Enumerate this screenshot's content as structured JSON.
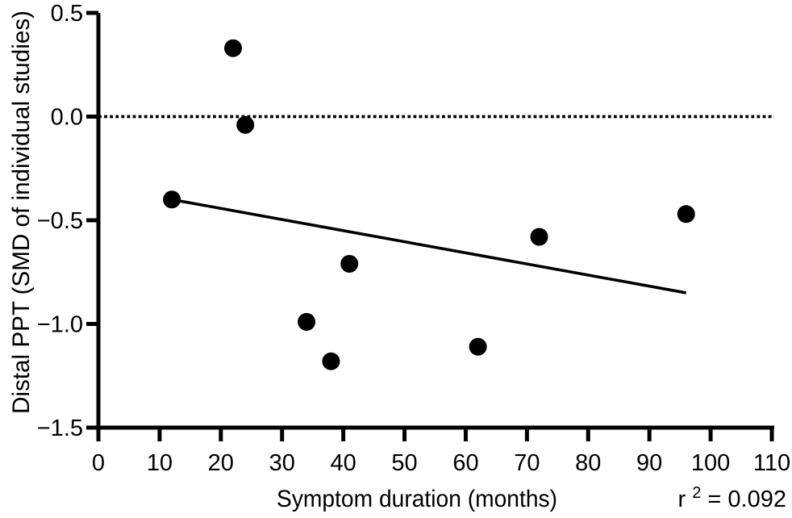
{
  "figure": {
    "background": "#ffffff",
    "ink_color": "#000000"
  },
  "chart_data": {
    "type": "scatter",
    "title": "",
    "xlabel": "Symptom duration (months)",
    "ylabel": "Distal PPT (SMD of individual studies)",
    "xlim": [
      0,
      110
    ],
    "ylim": [
      -1.5,
      0.5
    ],
    "grid": false,
    "legend": "none",
    "marker_color": "#000000",
    "x_ticks": [
      0,
      10,
      20,
      30,
      40,
      50,
      60,
      70,
      80,
      90,
      100,
      110
    ],
    "x_tick_labels": [
      "0",
      "10",
      "20",
      "30",
      "40",
      "50",
      "60",
      "70",
      "80",
      "90",
      "100",
      "110"
    ],
    "y_ticks": [
      0.5,
      0.0,
      -0.5,
      -1.0,
      -1.5
    ],
    "y_tick_labels": [
      "0.5",
      "0.0",
      "−0.5",
      "−1.0",
      "−1.5"
    ],
    "points": [
      {
        "x": 12,
        "y": -0.4
      },
      {
        "x": 22,
        "y": 0.33
      },
      {
        "x": 24,
        "y": -0.04
      },
      {
        "x": 34,
        "y": -0.99
      },
      {
        "x": 38,
        "y": -1.18
      },
      {
        "x": 41,
        "y": -0.71
      },
      {
        "x": 62,
        "y": -1.11
      },
      {
        "x": 72,
        "y": -0.58
      },
      {
        "x": 96,
        "y": -0.47
      }
    ],
    "reference_line": {
      "y": 0.0,
      "style": "dotted"
    },
    "trendline": {
      "x1": 12,
      "y1": -0.4,
      "x2": 96,
      "y2": -0.85
    },
    "annotation": {
      "base": "r",
      "sup": "2",
      "rest": " = 0.092"
    }
  }
}
